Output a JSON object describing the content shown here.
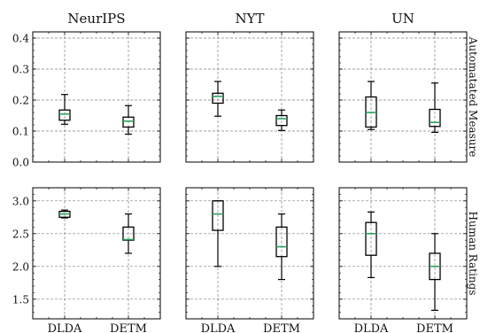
{
  "chart_data": {
    "type": "box",
    "columns": [
      "NeurIPS",
      "NYT",
      "UN"
    ],
    "categories": [
      "DLDA",
      "DETM"
    ],
    "rows": [
      {
        "label": "Automatated Measure",
        "ylim": [
          0,
          0.42
        ],
        "yticks": [
          0.0,
          0.1,
          0.2,
          0.3,
          0.4
        ],
        "ytick_labels": [
          "0.0",
          "0.1",
          "0.2",
          "0.3",
          "0.4"
        ],
        "panels": [
          {
            "title": "NeurIPS",
            "boxes": [
              {
                "category": "DLDA",
                "whisker_low": 0.122,
                "q1": 0.135,
                "median": 0.155,
                "q3": 0.168,
                "whisker_high": 0.218
              },
              {
                "category": "DETM",
                "whisker_low": 0.09,
                "q1": 0.113,
                "median": 0.132,
                "q3": 0.145,
                "whisker_high": 0.182
              }
            ]
          },
          {
            "title": "NYT",
            "boxes": [
              {
                "category": "DLDA",
                "whisker_low": 0.148,
                "q1": 0.19,
                "median": 0.212,
                "q3": 0.222,
                "whisker_high": 0.26
              },
              {
                "category": "DETM",
                "whisker_low": 0.102,
                "q1": 0.118,
                "median": 0.14,
                "q3": 0.15,
                "whisker_high": 0.168
              }
            ]
          },
          {
            "title": "UN",
            "boxes": [
              {
                "category": "DLDA",
                "whisker_low": 0.105,
                "q1": 0.113,
                "median": 0.16,
                "q3": 0.21,
                "whisker_high": 0.26
              },
              {
                "category": "DETM",
                "whisker_low": 0.096,
                "q1": 0.115,
                "median": 0.128,
                "q3": 0.17,
                "whisker_high": 0.255
              }
            ]
          }
        ]
      },
      {
        "label": "Human Ratings",
        "ylim": [
          1.2,
          3.2
        ],
        "yticks": [
          1.5,
          2.0,
          2.5,
          3.0
        ],
        "ytick_labels": [
          "1.5",
          "2.0",
          "2.5",
          "3.0"
        ],
        "panels": [
          {
            "title": "NeurIPS",
            "boxes": [
              {
                "category": "DLDA",
                "whisker_low": 2.74,
                "q1": 2.75,
                "median": 2.8,
                "q3": 2.84,
                "whisker_high": 2.86
              },
              {
                "category": "DETM",
                "whisker_low": 2.2,
                "q1": 2.4,
                "median": 2.41,
                "q3": 2.6,
                "whisker_high": 2.8
              }
            ]
          },
          {
            "title": "NYT",
            "boxes": [
              {
                "category": "DLDA",
                "whisker_low": 2.0,
                "q1": 2.55,
                "median": 2.8,
                "q3": 3.0,
                "whisker_high": 3.0
              },
              {
                "category": "DETM",
                "whisker_low": 1.8,
                "q1": 2.15,
                "median": 2.3,
                "q3": 2.6,
                "whisker_high": 2.8
              }
            ]
          },
          {
            "title": "UN",
            "boxes": [
              {
                "category": "DLDA",
                "whisker_low": 1.83,
                "q1": 2.17,
                "median": 2.5,
                "q3": 2.67,
                "whisker_high": 2.83
              },
              {
                "category": "DETM",
                "whisker_low": 1.33,
                "q1": 1.8,
                "median": 2.0,
                "q3": 2.2,
                "whisker_high": 2.5
              }
            ]
          }
        ]
      }
    ],
    "grid": true,
    "colors": {
      "median": "#2ca25f",
      "box": "#000000",
      "grid": "#808080"
    }
  }
}
